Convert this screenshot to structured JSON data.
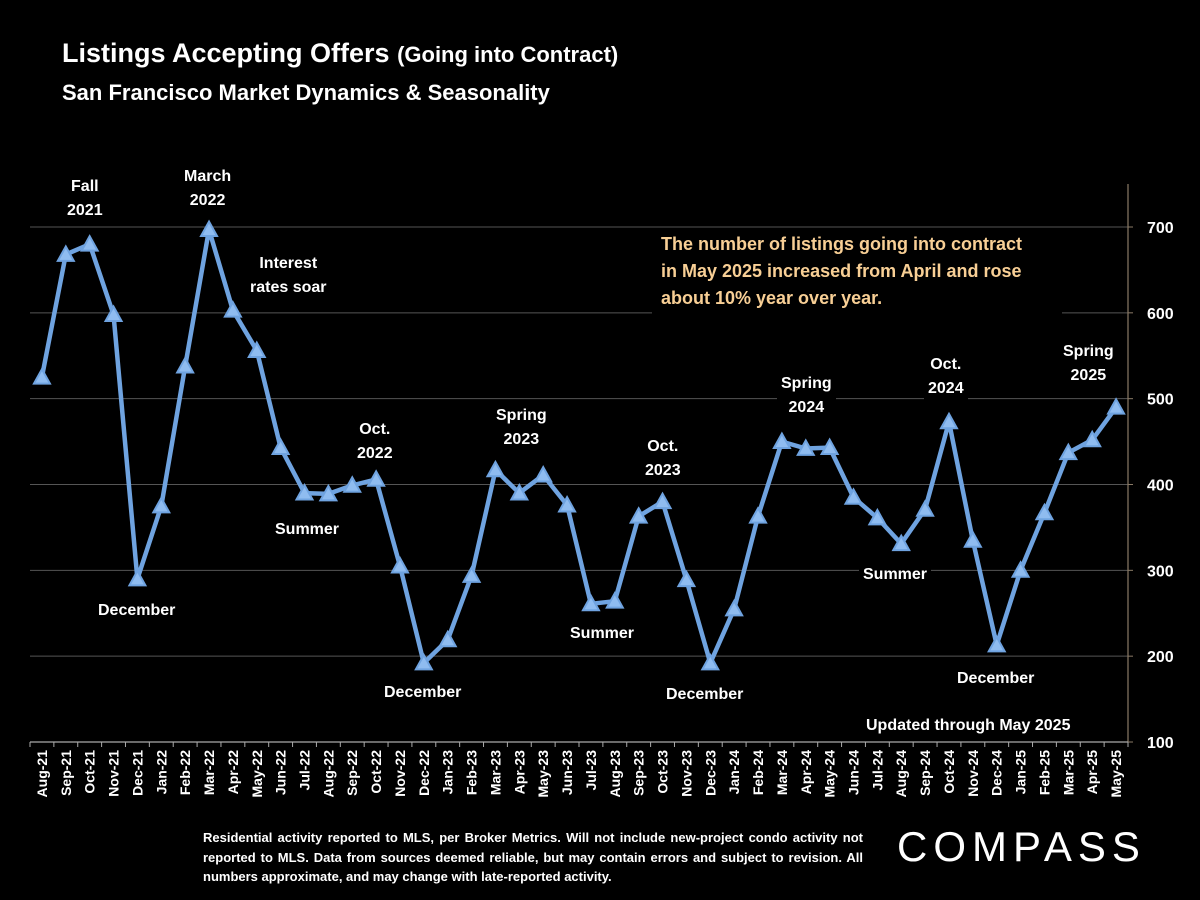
{
  "header": {
    "title_main": "Listings Accepting Offers",
    "title_paren": "(Going into Contract)",
    "subtitle": "San Francisco Market Dynamics & Seasonality"
  },
  "note": {
    "line1": "The number of listings going into contract",
    "line2": "in May 2025 increased from April and rose",
    "line3": "about 10% year over year."
  },
  "annotations": [
    {
      "id": "fall-2021",
      "text": "Fall\n2021"
    },
    {
      "id": "march-2022",
      "text": "March\n2022"
    },
    {
      "id": "interest-rates",
      "text": "Interest\nrates soar"
    },
    {
      "id": "december-2021",
      "text": "December"
    },
    {
      "id": "summer-2022",
      "text": "Summer"
    },
    {
      "id": "oct-2022",
      "text": "Oct.\n2022"
    },
    {
      "id": "december-2022",
      "text": "December"
    },
    {
      "id": "spring-2023",
      "text": "Spring\n2023"
    },
    {
      "id": "summer-2023",
      "text": "Summer"
    },
    {
      "id": "oct-2023",
      "text": "Oct.\n2023"
    },
    {
      "id": "december-2023",
      "text": "December"
    },
    {
      "id": "spring-2024",
      "text": "Spring\n2024"
    },
    {
      "id": "summer-2024",
      "text": "Summer"
    },
    {
      "id": "oct-2024",
      "text": "Oct.\n2024"
    },
    {
      "id": "december-2024",
      "text": "December"
    },
    {
      "id": "spring-2025",
      "text": "Spring\n2025"
    }
  ],
  "updated": "Updated through May 2025",
  "footer": {
    "disclaimer": "Residential activity reported to MLS, per Broker Metrics. Will not include new-project condo activity not reported to MLS. Data from sources deemed reliable, but may contain errors and subject to revision. All numbers approximate, and may change with late-reported activity.",
    "logo": "COMPASS"
  },
  "colors": {
    "line": "#6fa3e0",
    "marker_fill": "#8fbcf0",
    "grid": "#555555",
    "note_text": "#f8cf95",
    "background": "#000000"
  },
  "chart_data": {
    "type": "line",
    "categories": [
      "Aug-21",
      "Sep-21",
      "Oct-21",
      "Nov-21",
      "Dec-21",
      "Jan-22",
      "Feb-22",
      "Mar-22",
      "Apr-22",
      "May-22",
      "Jun-22",
      "Jul-22",
      "Aug-22",
      "Sep-22",
      "Oct-22",
      "Nov-22",
      "Dec-22",
      "Jan-23",
      "Feb-23",
      "Mar-23",
      "Apr-23",
      "May-23",
      "Jun-23",
      "Jul-23",
      "Aug-23",
      "Sep-23",
      "Oct-23",
      "Nov-23",
      "Dec-23",
      "Jan-24",
      "Feb-24",
      "Mar-24",
      "Apr-24",
      "May-24",
      "Jun-24",
      "Jul-24",
      "Aug-24",
      "Sep-24",
      "Oct-24",
      "Nov-24",
      "Dec-24",
      "Jan-25",
      "Feb-25",
      "Mar-25",
      "Apr-25",
      "May-25"
    ],
    "series": [
      {
        "values": [
          525,
          668,
          680,
          598,
          290,
          375,
          538,
          697,
          603,
          556,
          443,
          390,
          389,
          399,
          406,
          305,
          192,
          219,
          294,
          417,
          390,
          411,
          376,
          261,
          264,
          363,
          380,
          289,
          192,
          255,
          363,
          450,
          442,
          443,
          385,
          361,
          331,
          371,
          473,
          335,
          213,
          300,
          367,
          437,
          452,
          490
        ]
      }
    ],
    "ylim": [
      100,
      750
    ],
    "yticks": [
      100,
      200,
      300,
      400,
      500,
      600,
      700
    ],
    "axis_side": "right",
    "grid": true,
    "marker": "triangle"
  }
}
